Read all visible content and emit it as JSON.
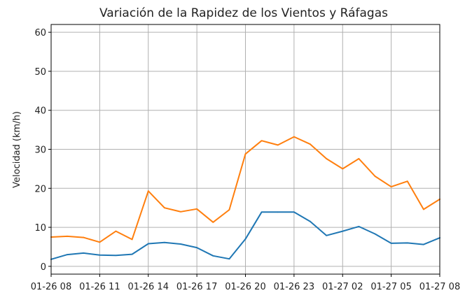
{
  "chart_data": {
    "type": "line",
    "title": "Variación de la Rapidez de los Vientos y Ráfagas",
    "xlabel": "",
    "ylabel": "Velocidad (km/h)",
    "ylim": [
      -2,
      62
    ],
    "yticks": [
      0,
      10,
      20,
      30,
      40,
      50,
      60
    ],
    "grid": true,
    "x": [
      0,
      1,
      2,
      3,
      4,
      5,
      6,
      7,
      8,
      9,
      10,
      11,
      12,
      13,
      14,
      15,
      16,
      17,
      18,
      19,
      20,
      21,
      22,
      23,
      24
    ],
    "xticks": [
      {
        "at": 0,
        "label": "01-26 08"
      },
      {
        "at": 3,
        "label": "01-26 11"
      },
      {
        "at": 6,
        "label": "01-26 14"
      },
      {
        "at": 9,
        "label": "01-26 17"
      },
      {
        "at": 12,
        "label": "01-26 20"
      },
      {
        "at": 15,
        "label": "01-26 23"
      },
      {
        "at": 18,
        "label": "01-27 02"
      },
      {
        "at": 21,
        "label": "01-27 05"
      },
      {
        "at": 24,
        "label": "01-27 08"
      }
    ],
    "series": [
      {
        "color": "#1f77b4",
        "values": [
          1.8,
          3.0,
          3.4,
          2.9,
          2.8,
          3.1,
          5.8,
          6.1,
          5.7,
          4.8,
          2.7,
          1.9,
          7.0,
          13.9,
          13.9,
          13.9,
          11.5,
          7.9,
          9.0,
          10.2,
          8.3,
          5.9,
          6.0,
          5.6,
          7.3
        ]
      },
      {
        "color": "#ff7f0e",
        "values": [
          7.5,
          7.7,
          7.4,
          6.2,
          9.0,
          6.9,
          19.3,
          15.0,
          14.0,
          14.7,
          11.3,
          14.5,
          28.8,
          32.2,
          31.1,
          33.2,
          31.3,
          27.6,
          25.0,
          27.6,
          23.1,
          20.4,
          21.8,
          14.6,
          17.2
        ]
      }
    ]
  }
}
